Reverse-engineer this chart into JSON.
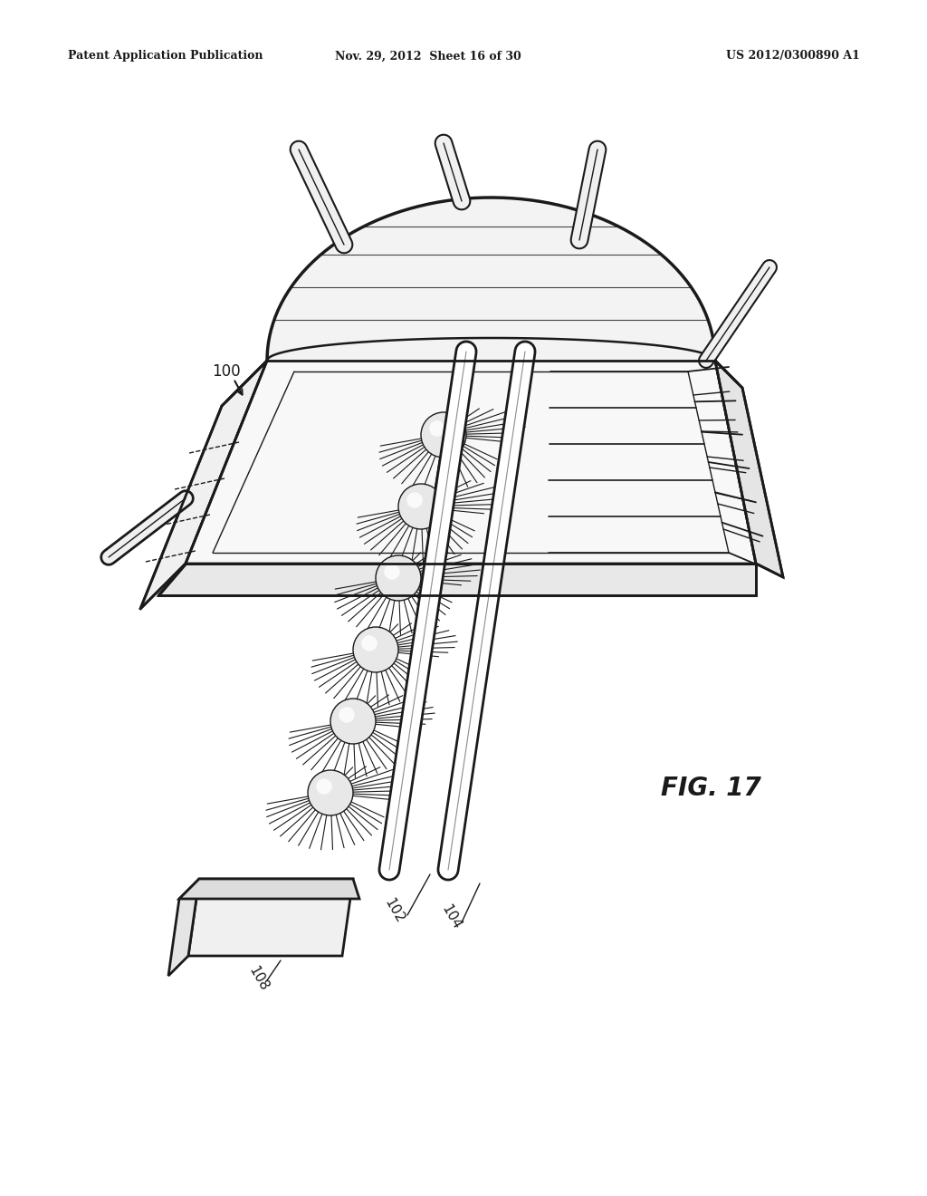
{
  "header_left": "Patent Application Publication",
  "header_mid": "Nov. 29, 2012  Sheet 16 of 30",
  "header_right": "US 2012/0300890 A1",
  "fig_label": "FIG. 17",
  "ref_100": "100",
  "ref_102": "102",
  "ref_104": "104",
  "ref_108": "108",
  "bg_color": "#ffffff",
  "line_color": "#1a1a1a",
  "fig_width": 10.24,
  "fig_height": 13.2,
  "dpi": 100
}
